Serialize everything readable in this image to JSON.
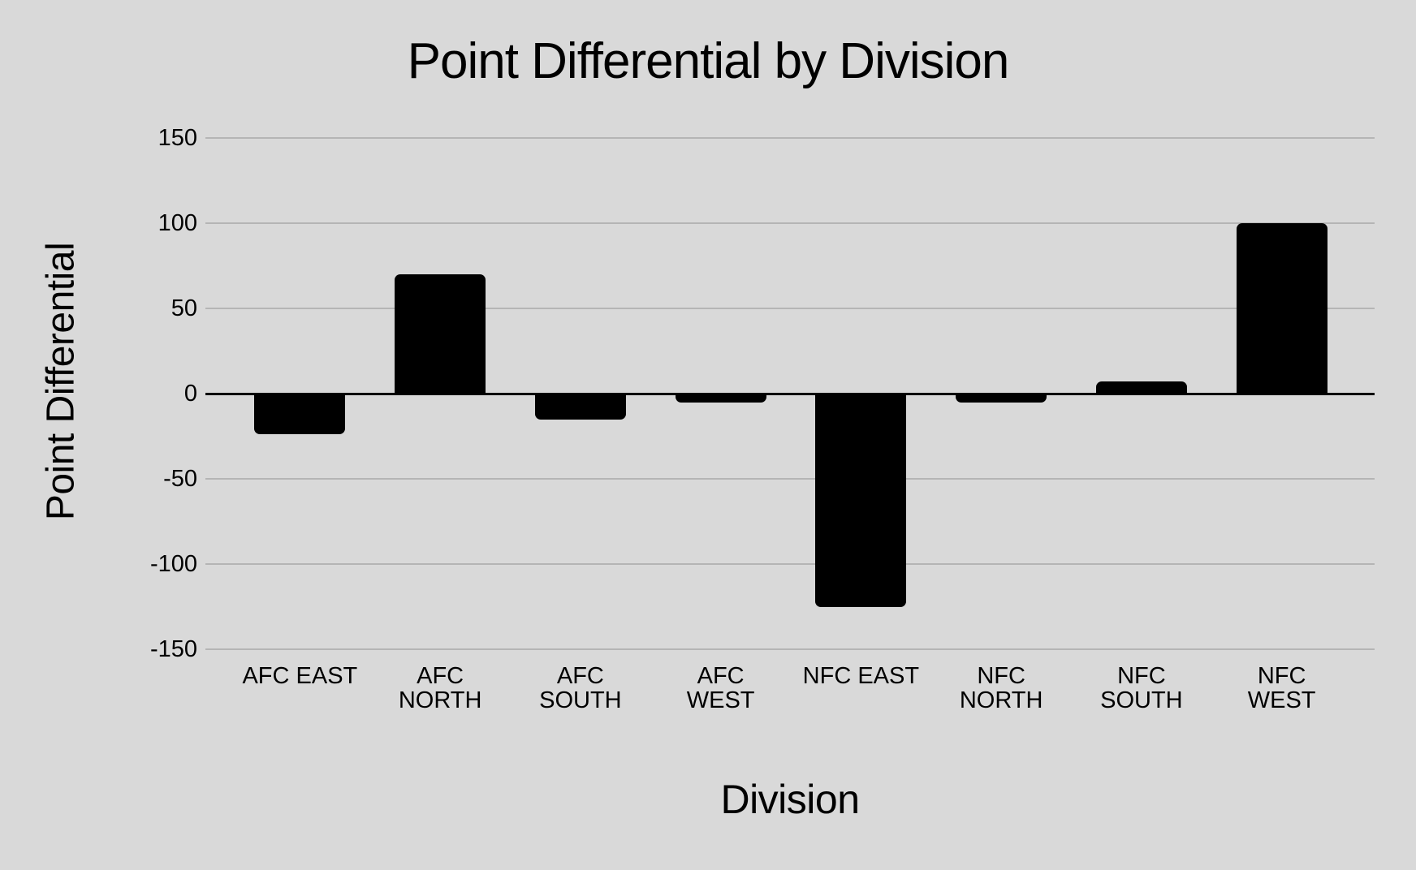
{
  "chart_data": {
    "type": "bar",
    "title": "Point Differential by Division",
    "xlabel": "Division",
    "ylabel": "Point Differential",
    "categories": [
      "AFC EAST",
      "AFC NORTH",
      "AFC SOUTH",
      "AFC WEST",
      "NFC EAST",
      "NFC NORTH",
      "NFC SOUTH",
      "NFC WEST"
    ],
    "category_label_lines": [
      [
        "AFC EAST"
      ],
      [
        "AFC",
        "NORTH"
      ],
      [
        "AFC",
        "SOUTH"
      ],
      [
        "AFC",
        "WEST"
      ],
      [
        "NFC EAST"
      ],
      [
        "NFC",
        "NORTH"
      ],
      [
        "NFC",
        "SOUTH"
      ],
      [
        "NFC",
        "WEST"
      ]
    ],
    "values": [
      -24,
      70,
      -15,
      -5,
      -125,
      -5,
      7,
      100
    ],
    "ylim": [
      -150,
      150
    ],
    "y_ticks": [
      150,
      100,
      50,
      0,
      -50,
      -100,
      -150
    ],
    "grid": true,
    "legend": false,
    "bar_color": "#000000",
    "background_color": "#d9d9d9",
    "gridline_color": "#b5b5b5",
    "zero_line_color": "#000000"
  }
}
